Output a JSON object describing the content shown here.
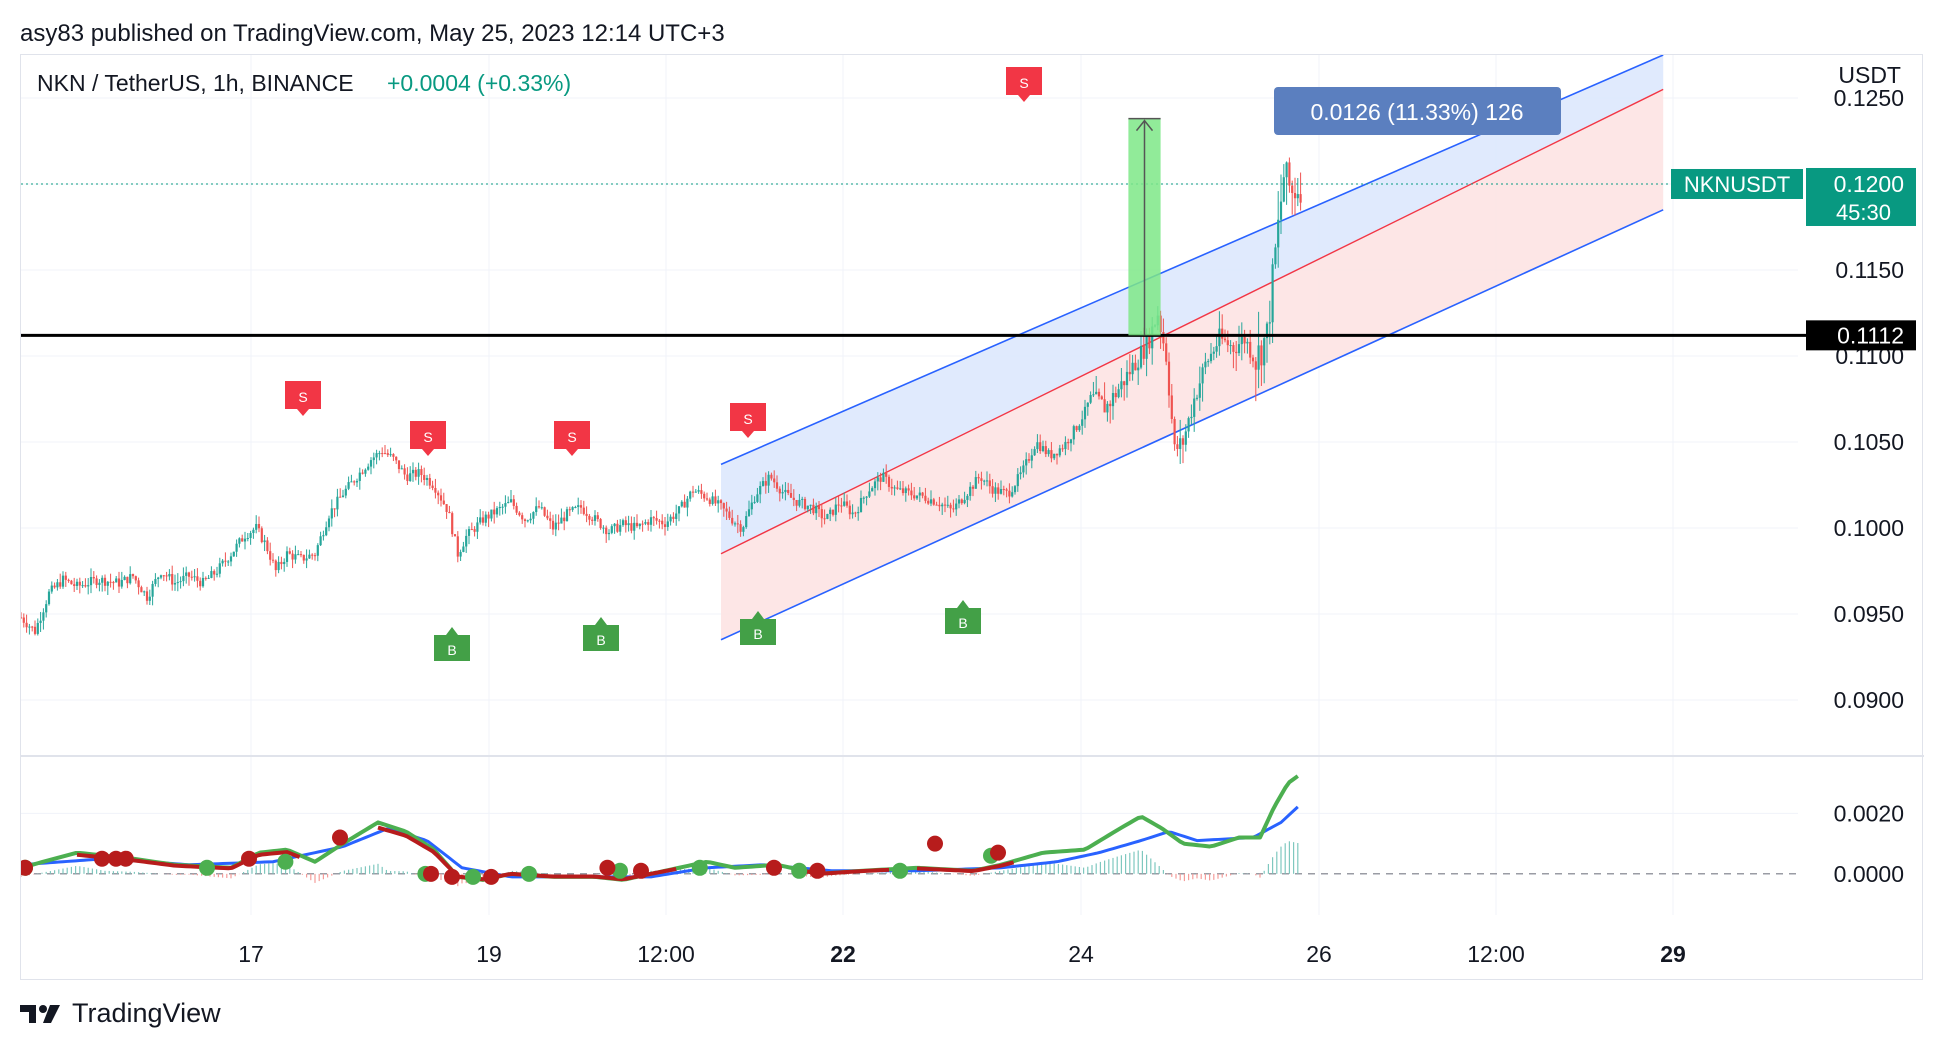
{
  "header": {
    "published_line": "asy83 published on TradingView.com, May 25, 2023 12:14 UTC+3"
  },
  "legend": {
    "symbol_line": "NKN / TetherUS, 1h, BINANCE",
    "change": "+0.0004 (+0.33%)"
  },
  "price_axis": {
    "currency": "USDT",
    "ticks": [
      "0.1250",
      "0.1150",
      "0.1100",
      "0.1050",
      "0.1000",
      "0.0950",
      "0.0900"
    ],
    "last_price": "0.1200",
    "countdown": "45:30",
    "symbol_tag": "NKNUSDT",
    "support_label": "0.1112"
  },
  "osc_axis": {
    "ticks": [
      "0.0020",
      "0.0000"
    ]
  },
  "time_axis": {
    "labels": [
      "17",
      "19",
      "12:00",
      "22",
      "24",
      "26",
      "12:00",
      "29"
    ]
  },
  "measure": {
    "label": "0.0126 (11.33%) 126"
  },
  "signals": {
    "sell": "S",
    "buy": "B"
  },
  "footer": {
    "brand": "TradingView",
    "logo_icon": "tradingview-logo-icon"
  },
  "colors": {
    "up": "#26a69a",
    "down": "#ef5350",
    "channel_fill": "#dbe6fd",
    "channel_lower_fill": "#fde2e2",
    "channel_line": "#2962ff",
    "mid_line": "#f23645",
    "sell_badge": "#f23645",
    "buy_badge": "#43a047",
    "support_line": "#000000",
    "price_tag": "#089981",
    "measure_box": "#5b7fbf",
    "measure_fill": "#7ee787"
  },
  "chart_data": {
    "type": "candlestick",
    "title": "NKN / TetherUS, 1h, BINANCE",
    "ylabel": "USDT",
    "ylim": [
      0.0868,
      0.1275
    ],
    "support_level": 0.1112,
    "last_price": 0.12,
    "x_labels": [
      "17",
      "19",
      "12:00",
      "22",
      "24",
      "26",
      "12:00",
      "29"
    ],
    "price_path": [
      [
        0,
        0.0948
      ],
      [
        10,
        0.094
      ],
      [
        20,
        0.0962
      ],
      [
        30,
        0.097
      ],
      [
        40,
        0.0966
      ],
      [
        55,
        0.097
      ],
      [
        70,
        0.0968
      ],
      [
        80,
        0.0972
      ],
      [
        90,
        0.096
      ],
      [
        100,
        0.0975
      ],
      [
        110,
        0.0968
      ],
      [
        120,
        0.0972
      ],
      [
        130,
        0.0968
      ],
      [
        140,
        0.0975
      ],
      [
        150,
        0.0985
      ],
      [
        160,
        0.0996
      ],
      [
        168,
        0.1
      ],
      [
        175,
        0.099
      ],
      [
        182,
        0.0975
      ],
      [
        190,
        0.0985
      ],
      [
        200,
        0.0982
      ],
      [
        210,
        0.0985
      ],
      [
        220,
        0.1008
      ],
      [
        230,
        0.102
      ],
      [
        240,
        0.103
      ],
      [
        250,
        0.104
      ],
      [
        258,
        0.1045
      ],
      [
        266,
        0.104
      ],
      [
        275,
        0.103
      ],
      [
        285,
        0.1032
      ],
      [
        295,
        0.1025
      ],
      [
        305,
        0.101
      ],
      [
        312,
        0.0985
      ],
      [
        318,
        0.0995
      ],
      [
        330,
        0.1005
      ],
      [
        340,
        0.101
      ],
      [
        350,
        0.1015
      ],
      [
        360,
        0.1005
      ],
      [
        370,
        0.1012
      ],
      [
        380,
        0.1
      ],
      [
        390,
        0.1008
      ],
      [
        400,
        0.1012
      ],
      [
        410,
        0.1005
      ],
      [
        420,
        0.0998
      ],
      [
        430,
        0.1002
      ],
      [
        440,
        0.1
      ],
      [
        450,
        0.1005
      ],
      [
        460,
        0.1003
      ],
      [
        470,
        0.101
      ],
      [
        480,
        0.1022
      ],
      [
        490,
        0.1018
      ],
      [
        500,
        0.1012
      ],
      [
        508,
        0.1005
      ],
      [
        515,
        0.1
      ],
      [
        525,
        0.102
      ],
      [
        535,
        0.103
      ],
      [
        545,
        0.102
      ],
      [
        555,
        0.1015
      ],
      [
        565,
        0.1012
      ],
      [
        575,
        0.1005
      ],
      [
        585,
        0.1015
      ],
      [
        595,
        0.1008
      ],
      [
        605,
        0.1022
      ],
      [
        615,
        0.103
      ],
      [
        625,
        0.1022
      ],
      [
        635,
        0.102
      ],
      [
        645,
        0.1018
      ],
      [
        655,
        0.1015
      ],
      [
        665,
        0.101
      ],
      [
        675,
        0.102
      ],
      [
        685,
        0.103
      ],
      [
        695,
        0.1022
      ],
      [
        705,
        0.102
      ],
      [
        715,
        0.1032
      ],
      [
        725,
        0.105
      ],
      [
        735,
        0.1042
      ],
      [
        745,
        0.1048
      ],
      [
        755,
        0.106
      ],
      [
        765,
        0.1075
      ],
      [
        775,
        0.107
      ],
      [
        785,
        0.1082
      ],
      [
        795,
        0.1095
      ],
      [
        805,
        0.1108
      ],
      [
        812,
        0.1125
      ],
      [
        818,
        0.11
      ],
      [
        824,
        0.1045
      ],
      [
        830,
        0.105
      ],
      [
        838,
        0.1075
      ],
      [
        846,
        0.1095
      ],
      [
        856,
        0.111
      ],
      [
        866,
        0.1105
      ],
      [
        874,
        0.111
      ],
      [
        882,
        0.1098
      ],
      [
        890,
        0.1112
      ],
      [
        896,
        0.116
      ],
      [
        902,
        0.1205
      ],
      [
        908,
        0.1195
      ],
      [
        914,
        0.12
      ]
    ],
    "channel": {
      "upper": [
        [
          500,
          0.1037
        ],
        [
          1173,
          0.1275
        ]
      ],
      "middle": [
        [
          500,
          0.0985
        ],
        [
          1173,
          0.1255
        ]
      ],
      "lower": [
        [
          500,
          0.0935
        ],
        [
          1173,
          0.1185
        ]
      ]
    },
    "measure": {
      "from": 0.1112,
      "to": 0.1238,
      "change": 0.0126,
      "percent": 11.33,
      "bars": 126
    },
    "sell_signals": [
      [
        240,
        0.108
      ],
      [
        315,
        0.107
      ],
      [
        435,
        0.107
      ],
      [
        595,
        0.108
      ],
      [
        878,
        0.1255
      ]
    ],
    "buy_signals": [
      [
        305,
        0.0957
      ],
      [
        395,
        0.0962
      ],
      [
        490,
        0.0963
      ],
      [
        615,
        0.0968
      ]
    ],
    "oscillator": {
      "ylim": [
        -0.0007,
        0.0035
      ],
      "fast": [
        [
          0,
          0.0002
        ],
        [
          40,
          0.0007
        ],
        [
          80,
          0.0005
        ],
        [
          110,
          0.0003
        ],
        [
          150,
          0.0002
        ],
        [
          170,
          0.0007
        ],
        [
          190,
          0.0008
        ],
        [
          210,
          0.0004
        ],
        [
          230,
          0.001
        ],
        [
          255,
          0.0017
        ],
        [
          275,
          0.0014
        ],
        [
          295,
          0.0008
        ],
        [
          312,
          -0.0001
        ],
        [
          330,
          -0.0002
        ],
        [
          350,
          0.0
        ],
        [
          380,
          -0.0001
        ],
        [
          410,
          -0.0001
        ],
        [
          430,
          -0.0002
        ],
        [
          460,
          0.0001
        ],
        [
          490,
          0.0004
        ],
        [
          510,
          0.0002
        ],
        [
          540,
          0.0003
        ],
        [
          570,
          0.0
        ],
        [
          600,
          0.0001
        ],
        [
          640,
          0.0002
        ],
        [
          680,
          0.0001
        ],
        [
          700,
          0.0003
        ],
        [
          730,
          0.0007
        ],
        [
          760,
          0.0008
        ],
        [
          785,
          0.0015
        ],
        [
          800,
          0.0019
        ],
        [
          815,
          0.0015
        ],
        [
          830,
          0.001
        ],
        [
          850,
          0.0009
        ],
        [
          870,
          0.0012
        ],
        [
          885,
          0.0012
        ],
        [
          895,
          0.0022
        ],
        [
          905,
          0.003
        ],
        [
          914,
          0.0033
        ]
      ],
      "slow": [
        [
          0,
          0.0003
        ],
        [
          60,
          0.0005
        ],
        [
          120,
          0.0003
        ],
        [
          180,
          0.0004
        ],
        [
          230,
          0.0009
        ],
        [
          262,
          0.0015
        ],
        [
          290,
          0.0011
        ],
        [
          315,
          0.0002
        ],
        [
          350,
          -0.0001
        ],
        [
          400,
          -0.0001
        ],
        [
          450,
          -0.0001
        ],
        [
          490,
          0.0002
        ],
        [
          530,
          0.0003
        ],
        [
          580,
          0.0001
        ],
        [
          640,
          0.0001
        ],
        [
          700,
          0.0002
        ],
        [
          740,
          0.0004
        ],
        [
          770,
          0.0007
        ],
        [
          800,
          0.0011
        ],
        [
          820,
          0.0014
        ],
        [
          840,
          0.0011
        ],
        [
          880,
          0.0012
        ],
        [
          900,
          0.0017
        ],
        [
          914,
          0.0023
        ]
      ],
      "histogram_up_to_x": 914
    }
  }
}
